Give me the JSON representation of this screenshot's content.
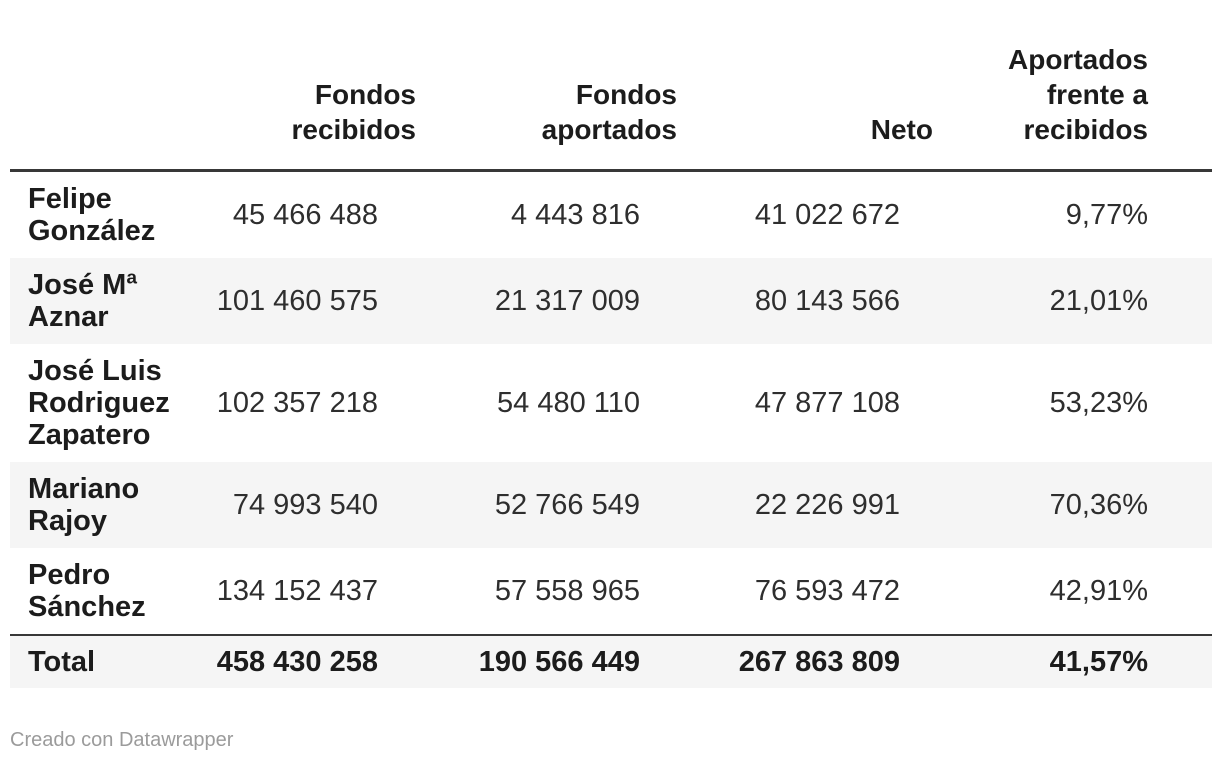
{
  "colors": {
    "header_rule": "#383838",
    "row_stripe": "#f5f5f5",
    "text_primary": "#1c1c1c",
    "text_values": "#2e2e2e",
    "credit_text": "#9b9b9b"
  },
  "table": {
    "columns": [
      {
        "label": ""
      },
      {
        "label": "Fondos\nrecibidos"
      },
      {
        "label": "Fondos\naportados"
      },
      {
        "label": "Neto"
      },
      {
        "label": "Aportados\nfrente a\nrecibidos"
      }
    ],
    "rows": [
      {
        "name": "Felipe\nGonzález",
        "recibidos": "45 466 488",
        "aportados": "4 443 816",
        "neto": "41 022 672",
        "ratio": "9,77%"
      },
      {
        "name": "José Mª\nAznar",
        "recibidos": "101 460 575",
        "aportados": "21 317 009",
        "neto": "80 143 566",
        "ratio": "21,01%"
      },
      {
        "name": "José Luis\nRodriguez\nZapatero",
        "recibidos": "102 357 218",
        "aportados": "54 480 110",
        "neto": "47 877 108",
        "ratio": "53,23%"
      },
      {
        "name": "Mariano\nRajoy",
        "recibidos": "74 993 540",
        "aportados": "52 766 549",
        "neto": "22 226 991",
        "ratio": "70,36%"
      },
      {
        "name": "Pedro\nSánchez",
        "recibidos": "134 152 437",
        "aportados": "57 558 965",
        "neto": "76 593 472",
        "ratio": "42,91%"
      }
    ],
    "total": {
      "name": "Total",
      "recibidos": "458 430 258",
      "aportados": "190 566 449",
      "neto": "267 863 809",
      "ratio": "41,57%"
    }
  },
  "footer": {
    "credit": "Creado con Datawrapper"
  },
  "chart_data": {
    "type": "table",
    "title": "",
    "columns": [
      "",
      "Fondos recibidos",
      "Fondos aportados",
      "Neto",
      "Aportados frente a recibidos"
    ],
    "rows": [
      [
        "Felipe González",
        45466488,
        4443816,
        41022672,
        "9,77%"
      ],
      [
        "José Mª Aznar",
        101460575,
        21317009,
        80143566,
        "21,01%"
      ],
      [
        "José Luis Rodriguez Zapatero",
        102357218,
        54480110,
        47877108,
        "53,23%"
      ],
      [
        "Mariano Rajoy",
        74993540,
        52766549,
        22226991,
        "70,36%"
      ],
      [
        "Pedro Sánchez",
        134152437,
        57558965,
        76593472,
        "42,91%"
      ],
      [
        "Total",
        458430258,
        190566449,
        267863809,
        "41,57%"
      ]
    ],
    "notes": "Numbers use space as thousands separator and comma as decimal separator; rows striped alternately; totals row bold"
  }
}
